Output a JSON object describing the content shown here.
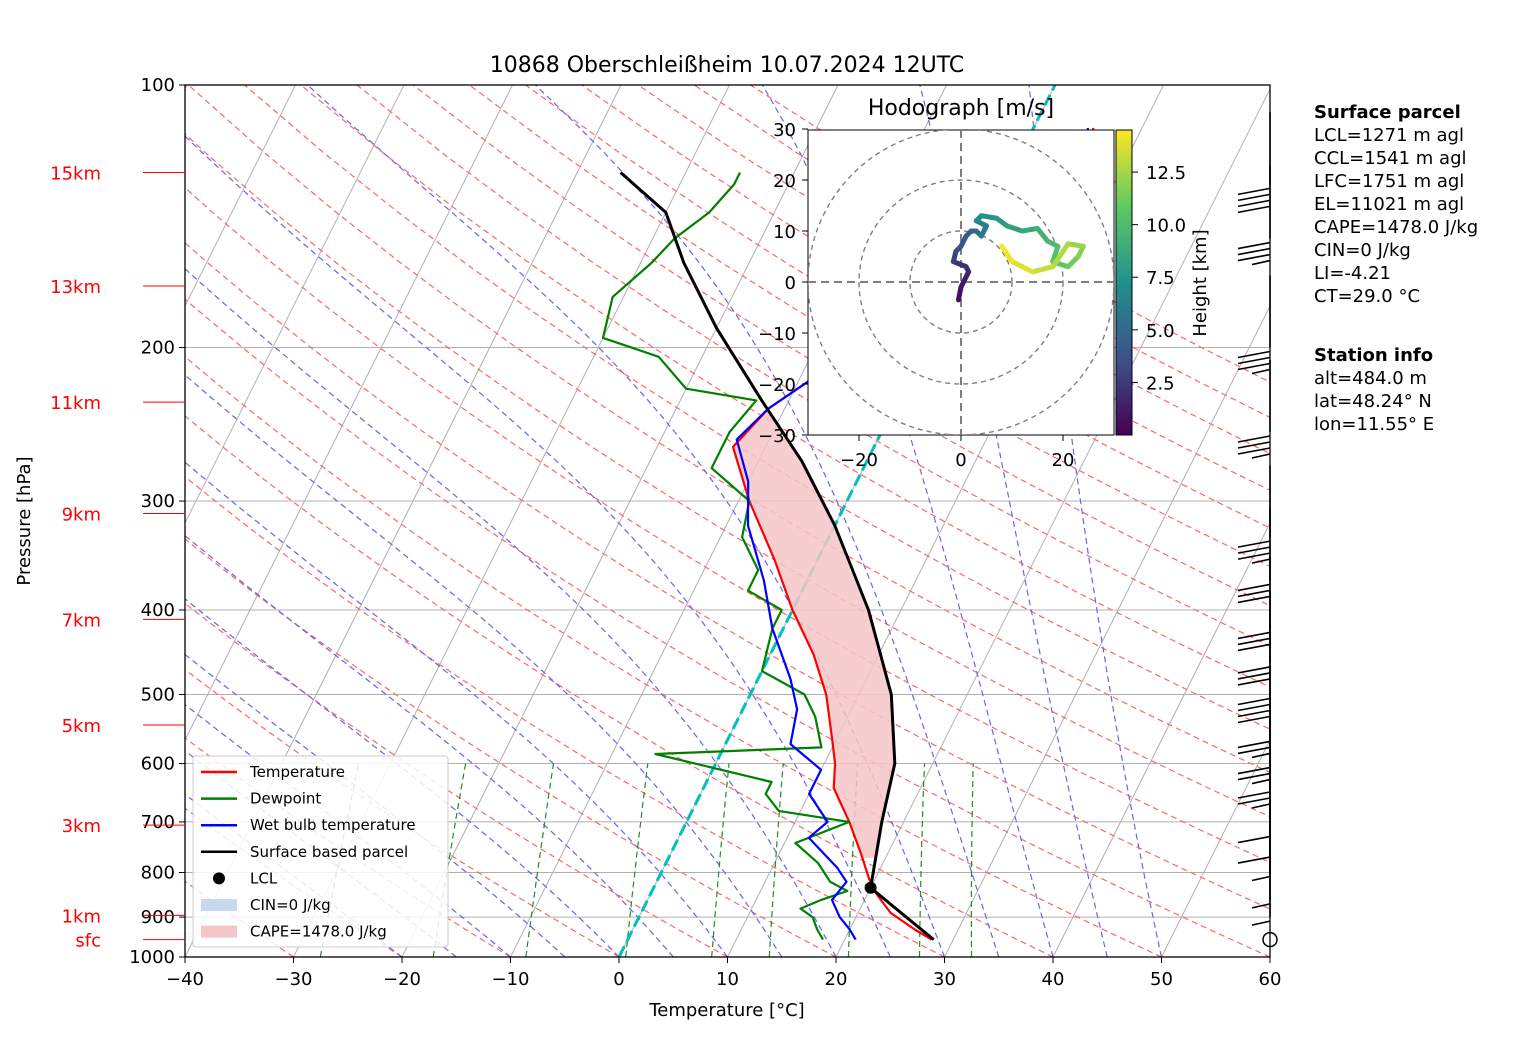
{
  "chart_data": {
    "type": "skewt",
    "title": "10868 Oberschleißheim 10.07.2024 12UTC",
    "xlabel": "Temperature [°C]",
    "ylabel": "Pressure [hPa]",
    "xlim": [
      -40,
      60
    ],
    "ylim": [
      1000,
      100
    ],
    "x_ticks": [
      "−40",
      "−30",
      "−20",
      "−10",
      "0",
      "10",
      "20",
      "30",
      "40",
      "50",
      "60"
    ],
    "p_ticks": [
      {
        "p": 100,
        "label": "100"
      },
      {
        "p": 200,
        "label": "200"
      },
      {
        "p": 300,
        "label": "300"
      },
      {
        "p": 400,
        "label": "400"
      },
      {
        "p": 500,
        "label": "500"
      },
      {
        "p": 600,
        "label": "600"
      },
      {
        "p": 700,
        "label": "700"
      },
      {
        "p": 800,
        "label": "800"
      },
      {
        "p": 900,
        "label": "900"
      },
      {
        "p": 1000,
        "label": "1000"
      }
    ],
    "height_labels": [
      {
        "p": 955,
        "label": "sfc"
      },
      {
        "p": 896,
        "label": "1km"
      },
      {
        "p": 706,
        "label": "3km"
      },
      {
        "p": 542,
        "label": "5km"
      },
      {
        "p": 410,
        "label": "7km"
      },
      {
        "p": 310,
        "label": "9km"
      },
      {
        "p": 231,
        "label": "11km"
      },
      {
        "p": 170,
        "label": "13km"
      },
      {
        "p": 126,
        "label": "15km"
      }
    ],
    "series": [
      {
        "name": "Temperature",
        "color": "#ff0000",
        "points": [
          [
            28,
            955
          ],
          [
            26,
            930
          ],
          [
            23,
            890
          ],
          [
            21,
            850
          ],
          [
            19.5,
            815
          ],
          [
            17.5,
            760
          ],
          [
            15,
            700
          ],
          [
            12,
            640
          ],
          [
            11,
            600
          ],
          [
            9.5,
            560
          ],
          [
            7,
            500
          ],
          [
            4,
            450
          ],
          [
            0,
            400
          ],
          [
            -4,
            350
          ],
          [
            -9,
            300
          ],
          [
            -13,
            260
          ],
          [
            -11.5,
            235
          ],
          [
            -8.5,
            215
          ],
          [
            -4.5,
            200
          ],
          [
            -2.5,
            185
          ],
          [
            1.5,
            165
          ],
          [
            2.5,
            150
          ],
          [
            3,
            140
          ],
          [
            4.5,
            130
          ],
          [
            6.5,
            120
          ],
          [
            6,
            115
          ],
          [
            5.5,
            112
          ]
        ]
      },
      {
        "name": "Dewpoint",
        "color": "#008000",
        "points": [
          [
            18,
            955
          ],
          [
            17,
            930
          ],
          [
            16,
            900
          ],
          [
            14.5,
            880
          ],
          [
            16,
            860
          ],
          [
            18,
            840
          ],
          [
            16,
            820
          ],
          [
            14,
            780
          ],
          [
            11,
            740
          ],
          [
            15,
            700
          ],
          [
            8,
            680
          ],
          [
            6,
            650
          ],
          [
            6,
            630
          ],
          [
            -6,
            585
          ],
          [
            9,
            575
          ],
          [
            7,
            530
          ],
          [
            5,
            500
          ],
          [
            0,
            470
          ],
          [
            -1,
            420
          ],
          [
            -1,
            400
          ],
          [
            -5,
            380
          ],
          [
            -5,
            360
          ],
          [
            -8,
            330
          ],
          [
            -9,
            300
          ],
          [
            -14,
            275
          ],
          [
            -14,
            250
          ],
          [
            -13,
            230
          ],
          [
            -20,
            223
          ],
          [
            -24,
            205
          ],
          [
            -30,
            195
          ],
          [
            -31,
            175
          ],
          [
            -29,
            160
          ],
          [
            -28,
            150
          ],
          [
            -26,
            140
          ],
          [
            -25,
            130
          ],
          [
            -25,
            126
          ]
        ]
      },
      {
        "name": "Wet bulb temperature",
        "color": "#0000ff",
        "points": [
          [
            21,
            955
          ],
          [
            20,
            930
          ],
          [
            18.5,
            900
          ],
          [
            17,
            860
          ],
          [
            17.5,
            820
          ],
          [
            16,
            790
          ],
          [
            12,
            730
          ],
          [
            13,
            700
          ],
          [
            10,
            650
          ],
          [
            10,
            610
          ],
          [
            6,
            570
          ],
          [
            5,
            520
          ],
          [
            3,
            480
          ],
          [
            -1,
            420
          ],
          [
            -4,
            370
          ],
          [
            -8,
            320
          ],
          [
            -10,
            285
          ],
          [
            -13,
            255
          ],
          [
            -11.5,
            235
          ],
          [
            -8.5,
            215
          ],
          [
            -5,
            200
          ],
          [
            -2.5,
            185
          ],
          [
            1,
            165
          ],
          [
            2,
            150
          ],
          [
            2.5,
            140
          ],
          [
            4,
            130
          ],
          [
            6,
            120
          ],
          [
            5.5,
            115
          ],
          [
            5,
            112
          ]
        ]
      },
      {
        "name": "Surface based parcel",
        "color": "#000000",
        "points": [
          [
            28.2,
            955
          ],
          [
            20,
            833
          ],
          [
            18,
            700
          ],
          [
            16.5,
            600
          ],
          [
            13,
            500
          ],
          [
            7,
            400
          ],
          [
            0,
            320
          ],
          [
            -6,
            270
          ],
          [
            -12.5,
            230
          ],
          [
            -20,
            190
          ],
          [
            -26,
            160
          ],
          [
            -30,
            140
          ],
          [
            -36,
            126
          ]
        ]
      }
    ],
    "lcl": {
      "name": "LCL",
      "t": 20,
      "p": 833
    },
    "cin_label": "CIN=0 J/kg",
    "cape_label": "CAPE=1478.0 J/kg",
    "wind_barbs": [
      {
        "p": 955,
        "speed": 0
      },
      {
        "p": 900,
        "speed": 5
      },
      {
        "p": 860,
        "speed": 5
      },
      {
        "p": 800,
        "speed": 5
      },
      {
        "p": 760,
        "speed": 10
      },
      {
        "p": 720,
        "speed": 10
      },
      {
        "p": 640,
        "speed": 25
      },
      {
        "p": 600,
        "speed": 25
      },
      {
        "p": 560,
        "speed": 25
      },
      {
        "p": 500,
        "speed": 40
      },
      {
        "p": 460,
        "speed": 30
      },
      {
        "p": 420,
        "speed": 30
      },
      {
        "p": 370,
        "speed": 30
      },
      {
        "p": 330,
        "speed": 35
      },
      {
        "p": 250,
        "speed": 35
      },
      {
        "p": 200,
        "speed": 35
      },
      {
        "p": 150,
        "speed": 35
      },
      {
        "p": 130,
        "speed": 40
      }
    ],
    "hodograph": {
      "title": "Hodograph [m/s]",
      "xlim": [
        -30,
        30
      ],
      "ylim": [
        -30,
        30
      ],
      "x_ticks": [
        "−20",
        "0",
        "20"
      ],
      "y_ticks": [
        "30",
        "20",
        "10",
        "0",
        "−10",
        "−20",
        "−30"
      ],
      "rings": [
        10,
        20,
        30
      ],
      "colorbar_label": "Height [km]",
      "colorbar_ticks": [
        "2.5",
        "5.0",
        "7.5",
        "10.0",
        "12.5"
      ],
      "points": [
        {
          "u": -0.5,
          "v": -3.5,
          "h": 0.5
        },
        {
          "u": 0,
          "v": -1,
          "h": 1
        },
        {
          "u": 1.5,
          "v": 2,
          "h": 1.5
        },
        {
          "u": 1,
          "v": 3,
          "h": 2
        },
        {
          "u": -1.5,
          "v": 4,
          "h": 2.5
        },
        {
          "u": -1,
          "v": 6,
          "h": 3
        },
        {
          "u": 0,
          "v": 7,
          "h": 3.5
        },
        {
          "u": 1,
          "v": 9,
          "h": 4
        },
        {
          "u": 2,
          "v": 10,
          "h": 4.5
        },
        {
          "u": 3,
          "v": 10,
          "h": 5
        },
        {
          "u": 4,
          "v": 9,
          "h": 5.5
        },
        {
          "u": 5,
          "v": 11,
          "h": 6
        },
        {
          "u": 3,
          "v": 12,
          "h": 6.5
        },
        {
          "u": 4,
          "v": 13,
          "h": 7
        },
        {
          "u": 7,
          "v": 12.5,
          "h": 7.5
        },
        {
          "u": 9,
          "v": 11,
          "h": 8
        },
        {
          "u": 12,
          "v": 10,
          "h": 8.5
        },
        {
          "u": 15,
          "v": 10.5,
          "h": 9
        },
        {
          "u": 17,
          "v": 8,
          "h": 9.5
        },
        {
          "u": 19,
          "v": 7,
          "h": 10
        },
        {
          "u": 18,
          "v": 4,
          "h": 10.5
        },
        {
          "u": 21,
          "v": 3,
          "h": 11
        },
        {
          "u": 23,
          "v": 5,
          "h": 11.5
        },
        {
          "u": 24,
          "v": 7,
          "h": 12
        },
        {
          "u": 21,
          "v": 7.5,
          "h": 12.5
        },
        {
          "u": 18,
          "v": 3,
          "h": 13
        },
        {
          "u": 14,
          "v": 2,
          "h": 13.5
        },
        {
          "u": 10,
          "v": 4,
          "h": 14
        },
        {
          "u": 8,
          "v": 7,
          "h": 14.5
        }
      ]
    },
    "legend": {
      "placement": "lower-left",
      "items": [
        "Temperature",
        "Dewpoint",
        "Wet bulb temperature",
        "Surface based parcel",
        "LCL",
        "CIN=0 J/kg",
        "CAPE=1478.0 J/kg"
      ]
    }
  },
  "side": {
    "surface_title": "Surface parcel",
    "surface_lines": [
      "LCL=1271 m agl",
      "CCL=1541 m agl",
      "LFC=1751 m agl",
      "EL=11021 m agl",
      "CAPE=1478.0 J/kg",
      "CIN=0 J/kg",
      "LI=-4.21",
      "CT=29.0 °C"
    ],
    "station_title": "Station info",
    "station_lines": [
      "alt=484.0 m",
      "lat=48.24° N",
      "lon=11.55° E"
    ]
  },
  "colors": {
    "temperature": "#ff0000",
    "dewpoint": "#008000",
    "wetbulb": "#0000ff",
    "parcel": "#000000",
    "cape_fill": "#f4c6c8",
    "cin_fill": "#c6d9ee",
    "freezing": "#00bfbf",
    "height_labels": "#ff0000"
  }
}
